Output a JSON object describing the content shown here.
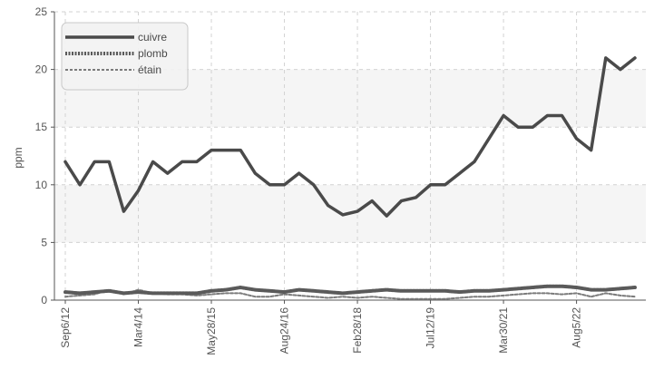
{
  "chart_data": {
    "type": "line",
    "title": "",
    "xlabel": "",
    "ylabel": "ppm",
    "ylim": [
      0,
      25
    ],
    "yticks": [
      0,
      5,
      10,
      15,
      20,
      25
    ],
    "grid": true,
    "legend_position": "top-left",
    "x_tick_labels": [
      "Sep6/12",
      "Mar4/14",
      "May28/15",
      "Aug24/16",
      "Feb28/18",
      "Jul12/19",
      "Mar30/21",
      "Aug5/22"
    ],
    "x_tick_indices": [
      0,
      5,
      10,
      15,
      20,
      25,
      30,
      35
    ],
    "series": [
      {
        "name": "cuivre",
        "color": "#4a4a4a",
        "style": "solid",
        "values": [
          12,
          10,
          12,
          12,
          7.7,
          9.5,
          12,
          11,
          12,
          12,
          13,
          13,
          13,
          11,
          10,
          10,
          11,
          10,
          8.2,
          7.4,
          7.7,
          8.6,
          7.3,
          8.6,
          8.9,
          10,
          10,
          11,
          12,
          14,
          16,
          15,
          15,
          16,
          16,
          14,
          13,
          21,
          20,
          21
        ]
      },
      {
        "name": "plomb",
        "color": "#5a5a5a",
        "style": "dotted",
        "values": [
          0.7,
          0.6,
          0.7,
          0.8,
          0.6,
          0.7,
          0.6,
          0.6,
          0.6,
          0.6,
          0.8,
          0.9,
          1.1,
          0.9,
          0.8,
          0.7,
          0.9,
          0.8,
          0.7,
          0.6,
          0.7,
          0.8,
          0.9,
          0.8,
          0.8,
          0.8,
          0.8,
          0.7,
          0.8,
          0.8,
          0.9,
          1.0,
          1.1,
          1.2,
          1.2,
          1.1,
          0.9,
          0.9,
          1.0,
          1.1
        ]
      },
      {
        "name": "étain",
        "color": "#7a7a7a",
        "style": "dashed",
        "values": [
          0.3,
          0.4,
          0.5,
          0.9,
          0.5,
          0.9,
          0.6,
          0.5,
          0.5,
          0.4,
          0.5,
          0.6,
          0.6,
          0.3,
          0.3,
          0.5,
          0.4,
          0.3,
          0.2,
          0.3,
          0.2,
          0.3,
          0.2,
          0.1,
          0.1,
          0.1,
          0.1,
          0.2,
          0.3,
          0.3,
          0.4,
          0.5,
          0.6,
          0.6,
          0.5,
          0.6,
          0.3,
          0.6,
          0.4,
          0.3
        ]
      }
    ]
  }
}
